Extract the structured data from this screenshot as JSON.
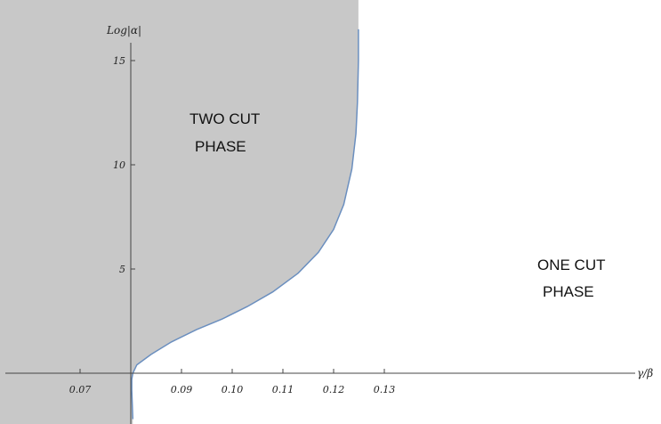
{
  "chart_data": {
    "type": "area",
    "title": "",
    "xlabel": "γ/β",
    "ylabel": "Log|α|",
    "xlim": [
      0.065,
      0.133
    ],
    "ylim": [
      -2.2,
      16.5
    ],
    "x_ticks": [
      {
        "value": 0.07,
        "label": "0.07"
      },
      {
        "value": 0.09,
        "label": "0.09"
      },
      {
        "value": 0.1,
        "label": "0.10"
      },
      {
        "value": 0.11,
        "label": "0.11"
      },
      {
        "value": 0.12,
        "label": "0.12"
      },
      {
        "value": 0.13,
        "label": "0.13"
      }
    ],
    "y_ticks": [
      {
        "value": 5,
        "label": "5"
      },
      {
        "value": 10,
        "label": "10"
      },
      {
        "value": 15,
        "label": "15"
      }
    ],
    "y_axis_x": 0.08,
    "boundary": {
      "x": [
        0.0804,
        0.0803,
        0.0802,
        0.0802,
        0.0804,
        0.0812,
        0.084,
        0.088,
        0.093,
        0.098,
        0.103,
        0.108,
        0.113,
        0.117,
        0.12,
        0.122,
        0.1236,
        0.1244,
        0.1247,
        0.1249,
        0.1249
      ],
      "y": [
        -2.2,
        -1.5,
        -0.8,
        -0.3,
        0.0,
        0.4,
        0.9,
        1.5,
        2.1,
        2.6,
        3.2,
        3.9,
        4.8,
        5.8,
        6.9,
        8.1,
        9.8,
        11.5,
        13.0,
        15.0,
        16.5
      ]
    },
    "regions": [
      {
        "label_line1": "TWO CUT",
        "label_line2": "PHASE",
        "fill": "#c8c8c8"
      },
      {
        "label_line1": "ONE CUT",
        "label_line2": "PHASE",
        "fill": "#ffffff"
      }
    ],
    "colors": {
      "shaded": "#c8c8c8",
      "boundary": "#6b8fbf",
      "axis": "#444444"
    },
    "grid": false
  }
}
